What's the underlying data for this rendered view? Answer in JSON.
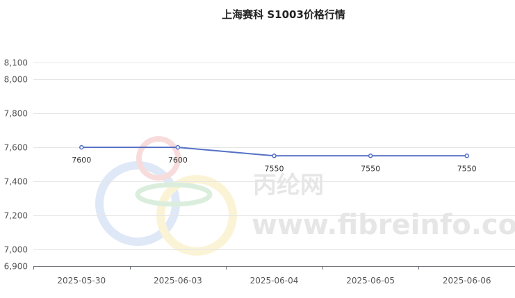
{
  "chart_data": {
    "type": "line",
    "title": "上海赛科 S1003价格行情",
    "xlabel": "",
    "ylabel": "",
    "categories": [
      "2025-05-30",
      "2025-06-03",
      "2025-06-04",
      "2025-06-05",
      "2025-06-06"
    ],
    "series": [
      {
        "values": [
          7600,
          7600,
          7550,
          7550,
          7550
        ]
      }
    ],
    "data_labels": [
      "7600",
      "7600",
      "7550",
      "7550",
      "7550"
    ],
    "ylim": [
      6900,
      8100
    ],
    "yticks": [
      6900,
      7000,
      7200,
      7400,
      7600,
      7800,
      8000,
      8100
    ],
    "ytick_labels": [
      "6,900",
      "7,000",
      "7,200",
      "7,400",
      "7,600",
      "7,800",
      "8,000",
      "8,100"
    ],
    "grid": true,
    "legend": "none",
    "line_color": "#5470c6"
  },
  "watermark": {
    "brand_cn": "丙纶网",
    "site": "www.fibreinfo.com"
  }
}
